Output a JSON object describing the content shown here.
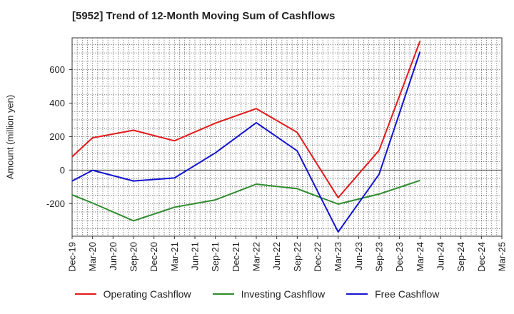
{
  "title": "[5952]  Trend of 12-Month Moving Sum of Cashflows",
  "chart_data": {
    "type": "line",
    "title": "[5952]  Trend of 12-Month Moving Sum of Cashflows",
    "xlabel": "",
    "ylabel": "Amount (million yen)",
    "categories": [
      "Dec-19",
      "Mar-20",
      "Jun-20",
      "Sep-20",
      "Dec-20",
      "Mar-21",
      "Jun-21",
      "Sep-21",
      "Dec-21",
      "Mar-22",
      "Jun-22",
      "Sep-22",
      "Dec-22",
      "Mar-23",
      "Jun-23",
      "Sep-23",
      "Dec-23",
      "Mar-24",
      "Jun-24",
      "Sep-24",
      "Dec-24",
      "Mar-25"
    ],
    "ylim": [
      -395,
      790
    ],
    "yticks": [
      -200,
      0,
      200,
      400,
      600
    ],
    "grid": true,
    "legend_position": "bottom",
    "series": [
      {
        "name": "Operating Cashflow",
        "color": "#e41a1c",
        "values": [
          80,
          193,
          null,
          238,
          null,
          175,
          null,
          280,
          null,
          367,
          null,
          225,
          null,
          -165,
          null,
          118,
          null,
          770,
          null,
          null,
          null,
          null
        ]
      },
      {
        "name": "Investing Cashflow",
        "color": "#2e8b2e",
        "values": [
          -148,
          -197,
          null,
          -303,
          null,
          -222,
          null,
          -178,
          null,
          -84,
          null,
          -111,
          null,
          -203,
          null,
          -143,
          null,
          -62,
          null,
          null,
          null,
          null
        ]
      },
      {
        "name": "Free Cashflow",
        "color": "#1414d2",
        "values": [
          -65,
          -1,
          null,
          -65,
          null,
          -47,
          null,
          103,
          null,
          283,
          null,
          115,
          null,
          -370,
          null,
          -25,
          null,
          707,
          null,
          null,
          null,
          null
        ]
      }
    ]
  }
}
